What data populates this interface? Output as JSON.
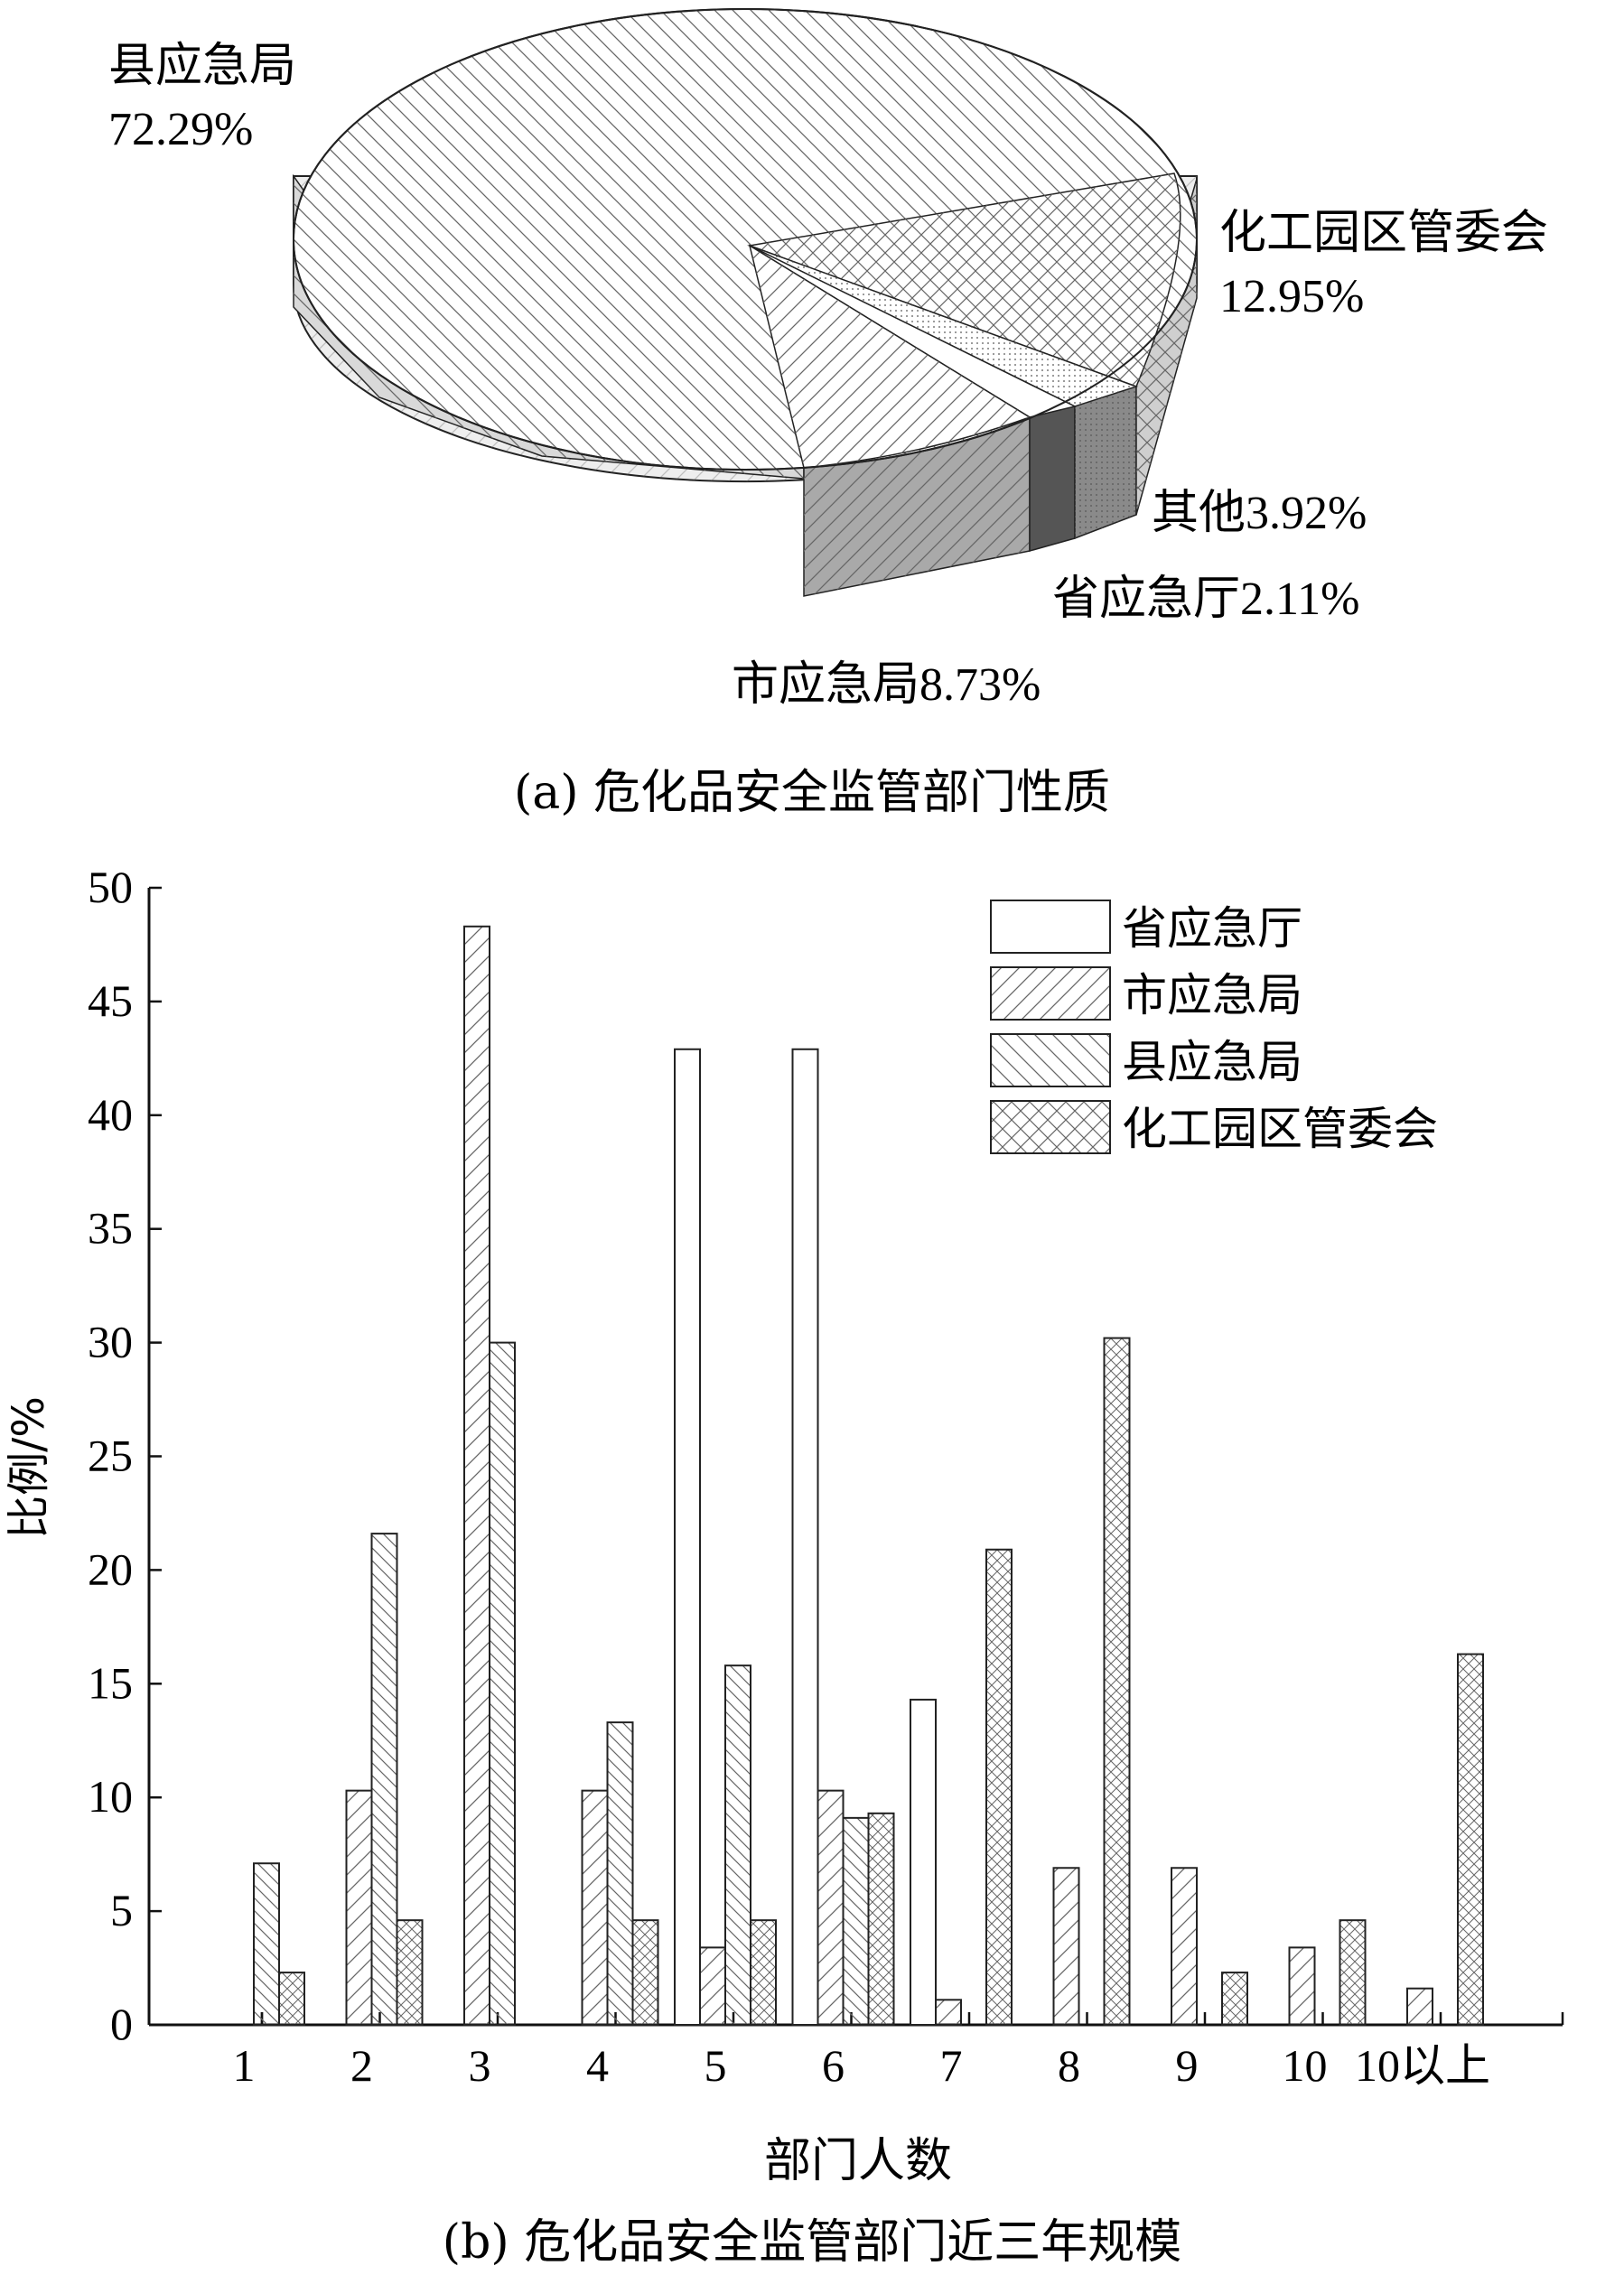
{
  "chart_data": [
    {
      "type": "pie",
      "caption": "(a) 危化品安全监管部门性质",
      "slices": [
        {
          "label": "县应急局",
          "value_label": "72.29%",
          "value": 72.29
        },
        {
          "label": "化工园区管委会",
          "value_label": "12.95%",
          "value": 12.95
        },
        {
          "label": "其他",
          "value_label": "3.92%",
          "value": 3.92
        },
        {
          "label": "省应急厅",
          "value_label": "2.11%",
          "value": 2.11
        },
        {
          "label": "市应急局",
          "value_label": "8.73%",
          "value": 8.73
        }
      ]
    },
    {
      "type": "bar",
      "caption": "(b) 危化品安全监管部门近三年规模",
      "xlabel": "部门人数",
      "ylabel": "比例/%",
      "ylim": [
        0,
        50
      ],
      "yticks": [
        0,
        5,
        10,
        15,
        20,
        25,
        30,
        35,
        40,
        45,
        50
      ],
      "categories": [
        "1",
        "2",
        "3",
        "4",
        "5",
        "6",
        "7",
        "8",
        "9",
        "10",
        "10以上"
      ],
      "legend_position": "top-right",
      "series": [
        {
          "name": "省应急厅",
          "values": [
            0,
            0,
            0,
            0,
            42.9,
            42.9,
            14.3,
            0,
            0,
            0,
            0
          ]
        },
        {
          "name": "市应急局",
          "values": [
            0,
            10.3,
            48.3,
            10.3,
            3.4,
            10.3,
            1.1,
            6.9,
            6.9,
            3.4,
            1.6
          ]
        },
        {
          "name": "县应急局",
          "values": [
            7.1,
            21.6,
            30.0,
            13.3,
            15.8,
            9.1,
            0,
            0,
            0,
            0,
            0
          ]
        },
        {
          "name": "化工园区管委会",
          "values": [
            2.3,
            4.6,
            0,
            4.6,
            4.6,
            9.3,
            20.9,
            30.2,
            2.3,
            4.6,
            16.3
          ]
        }
      ]
    }
  ]
}
